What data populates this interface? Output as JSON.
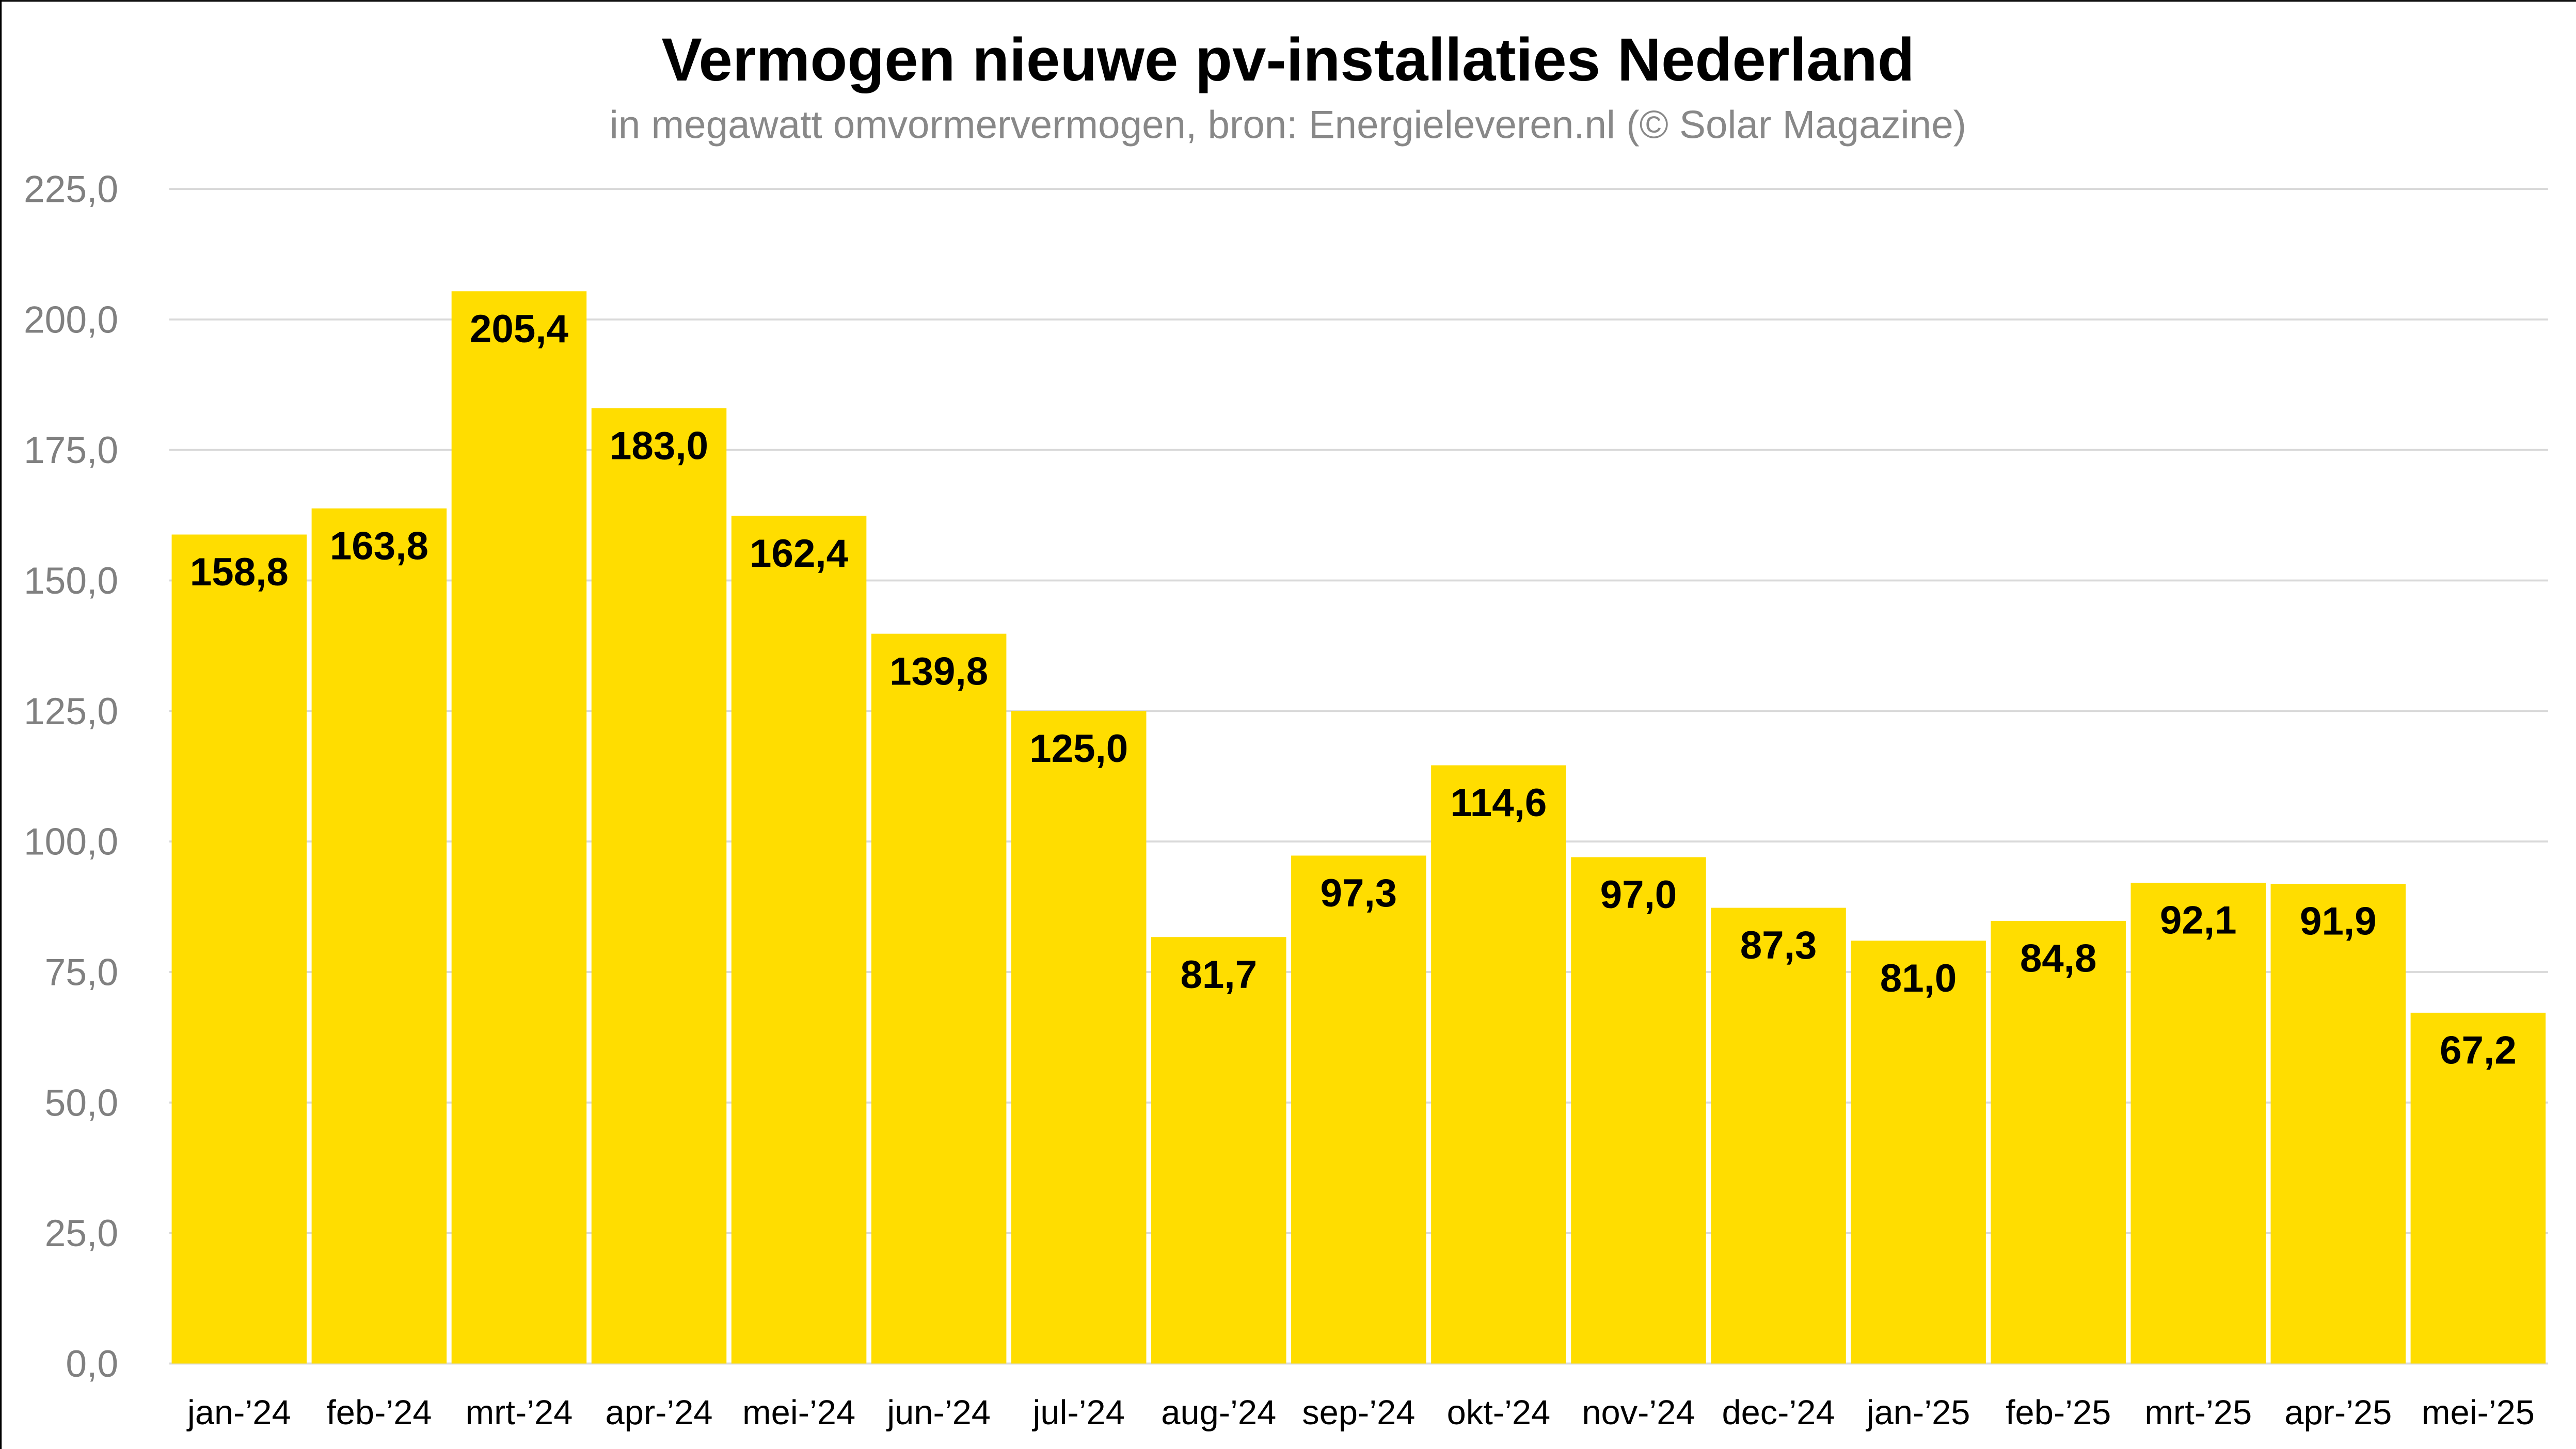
{
  "chart_data": {
    "type": "bar",
    "title": "Vermogen nieuwe pv-installaties Nederland",
    "subtitle": "in megawatt omvormervermogen, bron: Energieleveren.nl (© Solar Magazine)",
    "xlabel": "",
    "ylabel": "",
    "ylim": [
      0,
      225
    ],
    "yticks": [
      0,
      25,
      50,
      75,
      100,
      125,
      150,
      175,
      200,
      225
    ],
    "ytick_labels": [
      "0,0",
      "25,0",
      "50,0",
      "75,0",
      "100,0",
      "125,0",
      "150,0",
      "175,0",
      "200,0",
      "225,0"
    ],
    "grid": true,
    "bar_color": "#FFDD00",
    "categories": [
      "jan-’24",
      "feb-’24",
      "mrt-’24",
      "apr-’24",
      "mei-’24",
      "jun-’24",
      "jul-’24",
      "aug-’24",
      "sep-’24",
      "okt-’24",
      "nov-’24",
      "dec-’24",
      "jan-’25",
      "feb-’25",
      "mrt-’25",
      "apr-’25",
      "mei-’25"
    ],
    "values": [
      158.8,
      163.8,
      205.4,
      183.0,
      162.4,
      139.8,
      125.0,
      81.7,
      97.3,
      114.6,
      97.0,
      87.3,
      81.0,
      84.8,
      92.1,
      91.9,
      67.2
    ],
    "data_labels": [
      "158,8",
      "163,8",
      "205,4",
      "183,0",
      "162,4",
      "139,8",
      "125,0",
      "81,7",
      "97,3",
      "114,6",
      "97,0",
      "87,3",
      "81,0",
      "84,8",
      "92,1",
      "91,9",
      "67,2"
    ]
  }
}
